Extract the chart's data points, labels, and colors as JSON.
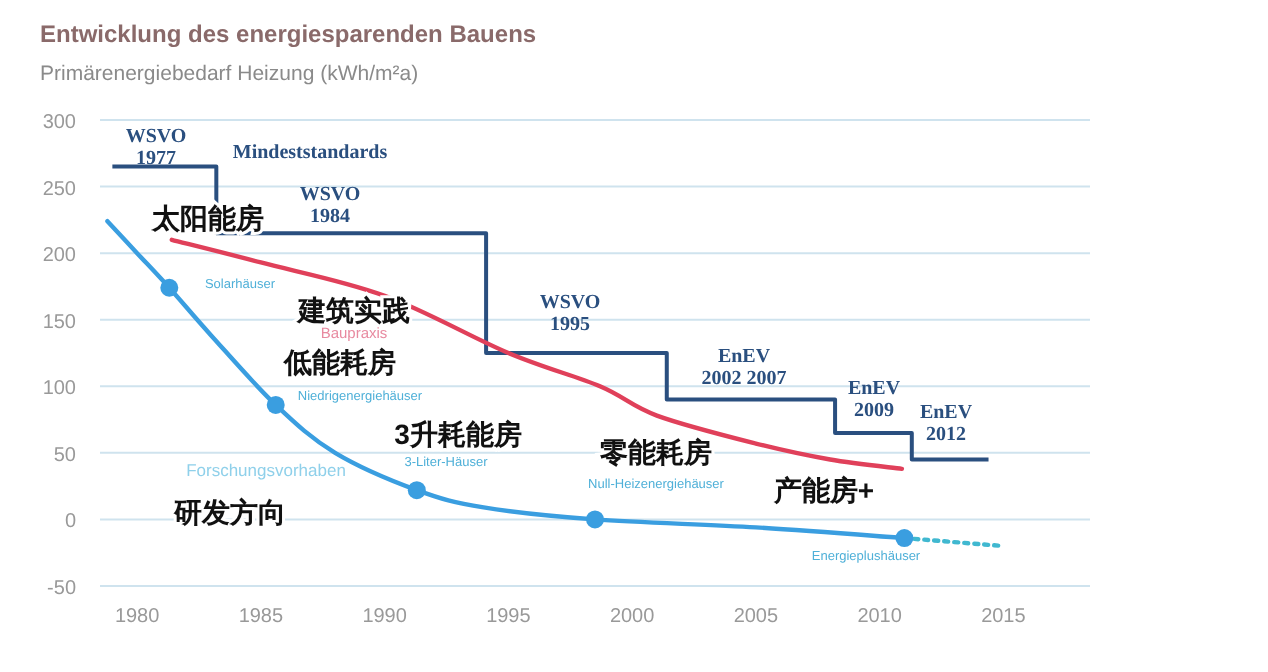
{
  "chart_data": {
    "type": "line",
    "title": "Entwicklung des energiesparenden Bauens",
    "subtitle": "Primärenergiebedarf Heizung (kWh/m²a)",
    "xlim": [
      1978.5,
      2018.5
    ],
    "xticks": [
      1980,
      1985,
      1990,
      1995,
      2000,
      2005,
      2010,
      2015
    ],
    "ylim": [
      -50,
      300
    ],
    "yticks": [
      -50,
      0,
      50,
      100,
      150,
      200,
      250,
      300
    ],
    "grid": "y",
    "series": [
      {
        "type": "step",
        "color": "#2a4f7f",
        "x": [
          1979,
          1983.2,
          1994.1,
          2001.4,
          2008.2,
          2011.3,
          2014.4
        ],
        "values": [
          265,
          215,
          125,
          90,
          65,
          45,
          45
        ]
      },
      {
        "color": "#e0405a",
        "x": [
          1981.4,
          1985,
          1990,
          1995,
          1998.7,
          2001,
          2005,
          2008,
          2010.9
        ],
        "values": [
          210,
          193,
          168,
          125,
          100,
          78,
          57,
          45,
          38
        ]
      },
      {
        "color": "#3a9ee0",
        "x": [
          1978.8,
          1980,
          1981.3,
          1983,
          1985.6,
          1988,
          1991.3,
          1994,
          1998.5,
          2005,
          2011
        ],
        "values": [
          224,
          200,
          174,
          138,
          86,
          50,
          22,
          9,
          0,
          -6,
          -14
        ]
      },
      {
        "type": "line",
        "color": "#40b8d0",
        "line_style": "dotted",
        "x": [
          2011,
          2015
        ],
        "values": [
          -14,
          -20
        ]
      },
      {
        "type": "scatter",
        "color": "#3a9ee0",
        "marker": "circle",
        "x": [
          1981.3,
          1985.6,
          1991.3,
          1998.5,
          2011
        ],
        "values": [
          174,
          86,
          22,
          0,
          -14
        ]
      }
    ],
    "annotations": [
      "WSVO\n1977",
      "Mindeststandards",
      "WSVO\n1984",
      "太阳能房",
      "Solarhäuser",
      "建筑实践",
      "Baupraxis",
      "WSVO\n1995",
      "低能耗房",
      "Niedrigenergiehäuser",
      "EnEV\n2002 2007",
      "EnEV\n2009",
      "EnEV\n2012",
      "3升耗能房",
      "3-Liter-Häuser",
      "Forschungsvorhaben",
      "零能耗房",
      "Null-Heizenergiehäuser",
      "研发方向",
      "产能房+",
      "Energieplushäuser"
    ]
  }
}
